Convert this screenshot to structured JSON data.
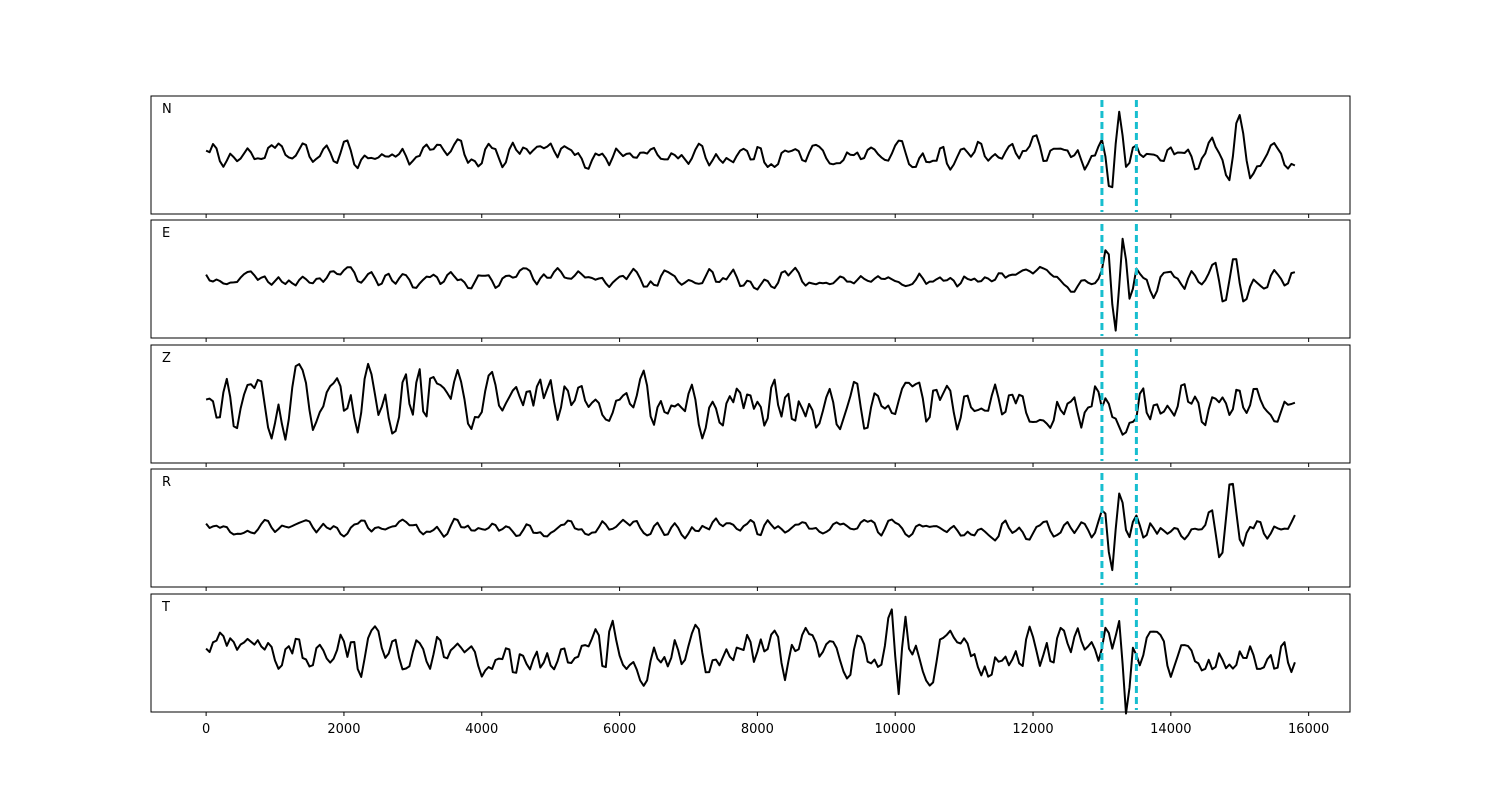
{
  "chart_data": {
    "type": "line",
    "xlim": [
      -800,
      16600
    ],
    "ylim": [
      -1.35,
      1.35
    ],
    "x_ticks": [
      0,
      2000,
      4000,
      6000,
      8000,
      10000,
      12000,
      14000,
      16000
    ],
    "x_tick_labels": [
      "0",
      "2000",
      "4000",
      "6000",
      "8000",
      "10000",
      "12000",
      "14000",
      "16000"
    ],
    "grid": false,
    "legend": "none",
    "sample_step": 50,
    "x_start": 0,
    "x_end": 15800,
    "markers": [
      13000,
      13500
    ],
    "marker_color": "#17becf",
    "trace_color": "#000000",
    "panels": [
      {
        "name": "N",
        "events": [
          {
            "x": 13200,
            "amp": 0.9,
            "width": 220
          },
          {
            "x": 14900,
            "amp": 0.7,
            "width": 300
          }
        ],
        "envelope": [
          {
            "x": 0,
            "amp": 0.3
          },
          {
            "x": 5400,
            "amp": 0.5
          },
          {
            "x": 6000,
            "amp": 0.35
          },
          {
            "x": 10000,
            "amp": 0.4
          },
          {
            "x": 12000,
            "amp": 0.45
          },
          {
            "x": 14500,
            "amp": 0.45
          },
          {
            "x": 15200,
            "amp": 0.6
          },
          {
            "x": 15800,
            "amp": 0.35
          }
        ]
      },
      {
        "name": "E",
        "events": [
          {
            "x": 13250,
            "amp": 1.2,
            "width": 200
          },
          {
            "x": 14850,
            "amp": 0.8,
            "width": 250
          }
        ],
        "envelope": [
          {
            "x": 0,
            "amp": 0.2
          },
          {
            "x": 3000,
            "amp": 0.3
          },
          {
            "x": 6000,
            "amp": 0.3
          },
          {
            "x": 10000,
            "amp": 0.3
          },
          {
            "x": 12000,
            "amp": 0.35
          },
          {
            "x": 14000,
            "amp": 0.45
          },
          {
            "x": 15800,
            "amp": 0.35
          }
        ]
      },
      {
        "name": "Z",
        "events": [
          {
            "x": 3200,
            "amp": 0.6,
            "width": 150
          },
          {
            "x": 9600,
            "amp": 0.4,
            "width": 200
          }
        ],
        "envelope": [
          {
            "x": 0,
            "amp": 0.85
          },
          {
            "x": 3200,
            "amp": 1.0
          },
          {
            "x": 8000,
            "amp": 0.85
          },
          {
            "x": 12000,
            "amp": 0.8
          },
          {
            "x": 15800,
            "amp": 0.8
          }
        ]
      },
      {
        "name": "R",
        "events": [
          {
            "x": 13200,
            "amp": 1.1,
            "width": 220
          },
          {
            "x": 14800,
            "amp": 1.0,
            "width": 250
          }
        ],
        "envelope": [
          {
            "x": 0,
            "amp": 0.2
          },
          {
            "x": 6000,
            "amp": 0.25
          },
          {
            "x": 10000,
            "amp": 0.25
          },
          {
            "x": 12000,
            "amp": 0.3
          },
          {
            "x": 14000,
            "amp": 0.4
          },
          {
            "x": 15800,
            "amp": 0.3
          }
        ]
      },
      {
        "name": "T",
        "events": [
          {
            "x": 10100,
            "amp": 0.8,
            "width": 180
          },
          {
            "x": 13400,
            "amp": 0.9,
            "width": 180
          }
        ],
        "envelope": [
          {
            "x": 0,
            "amp": 0.6
          },
          {
            "x": 5400,
            "amp": 0.85
          },
          {
            "x": 10000,
            "amp": 0.8
          },
          {
            "x": 12000,
            "amp": 0.85
          },
          {
            "x": 15800,
            "amp": 0.7
          }
        ]
      }
    ]
  }
}
